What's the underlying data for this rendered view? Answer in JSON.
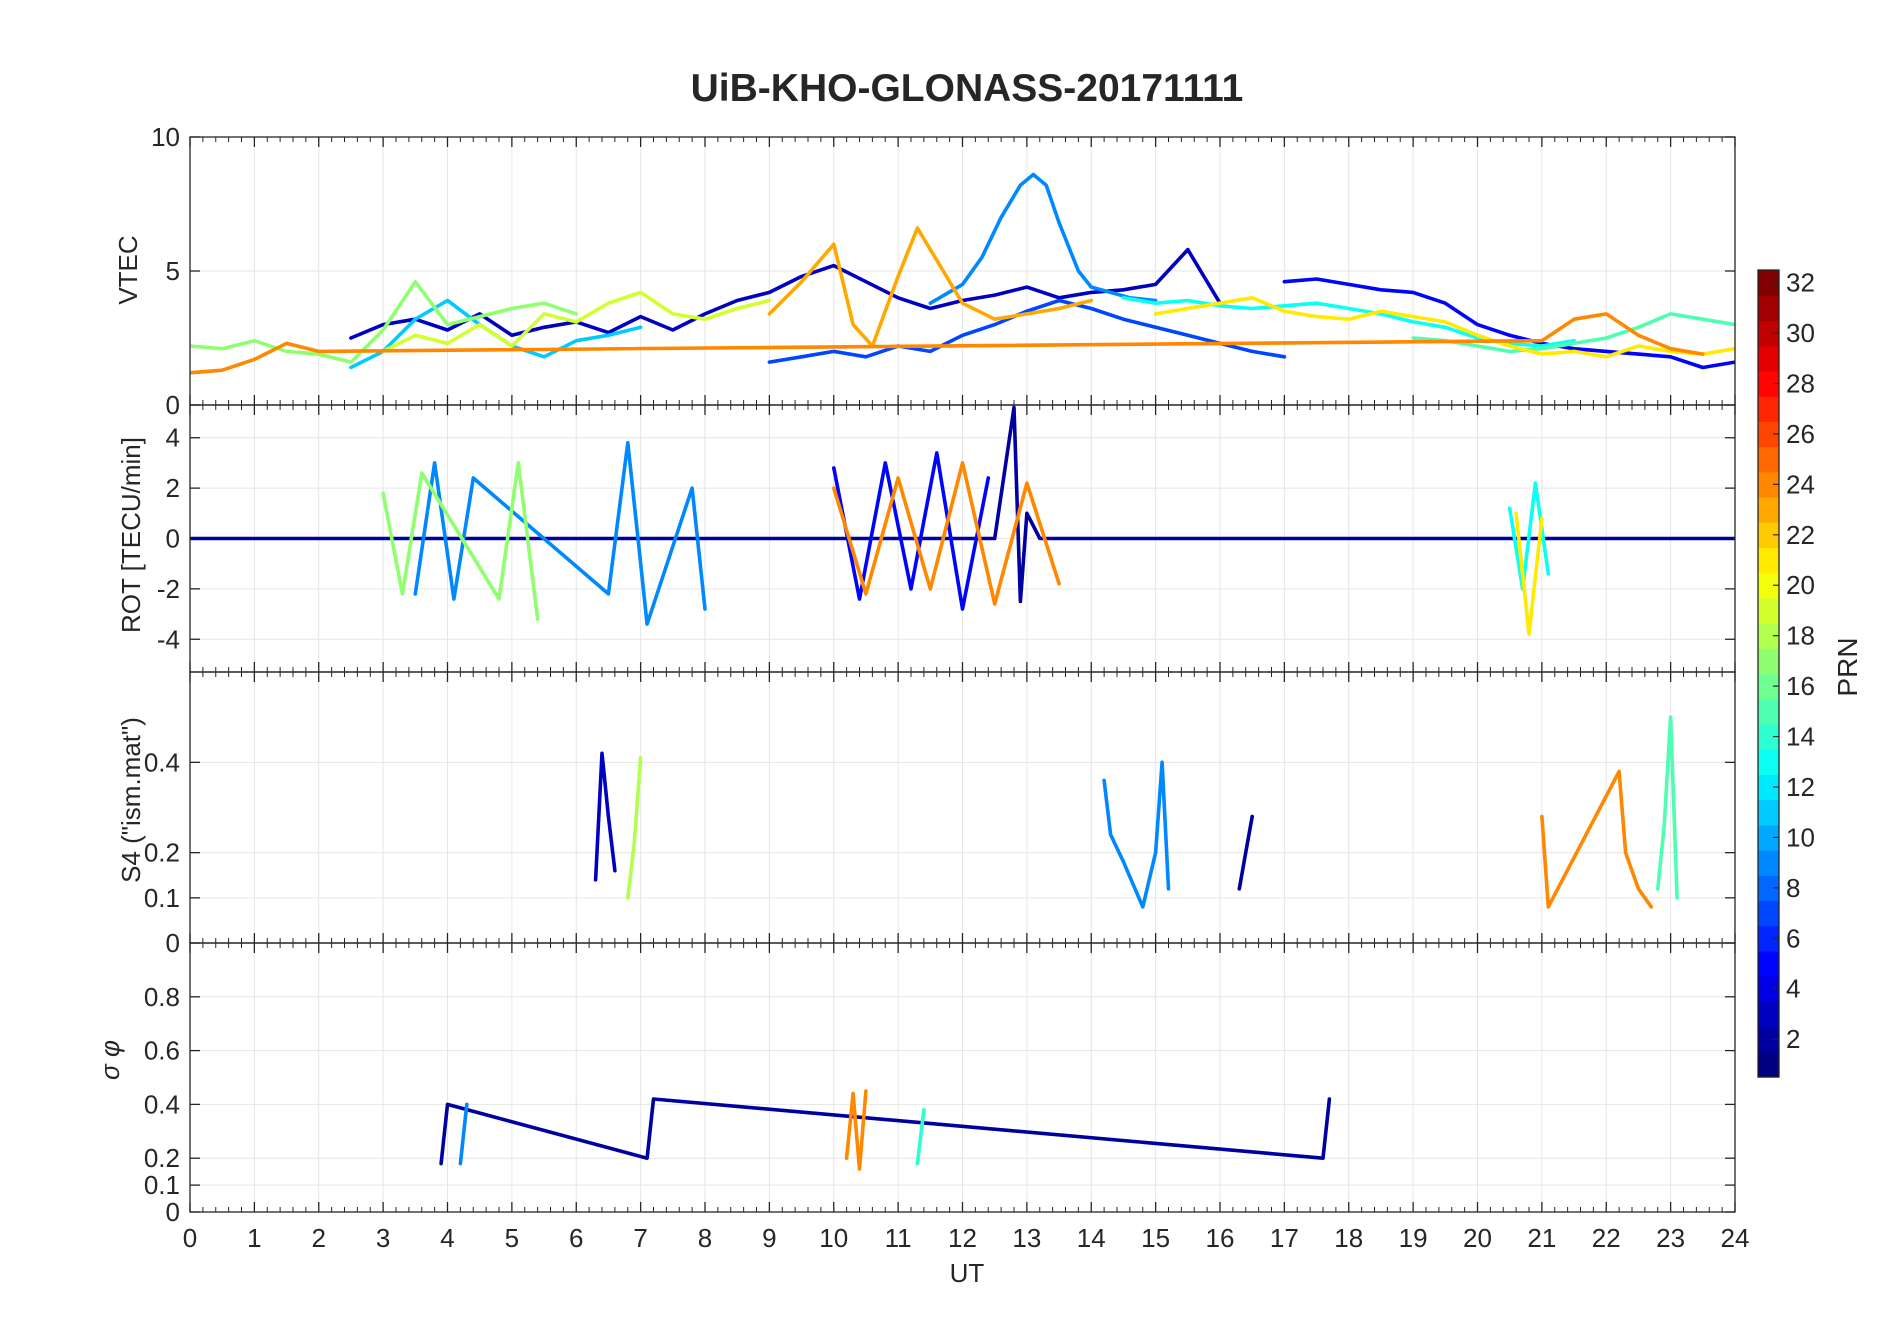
{
  "chart_data": {
    "type": "line",
    "title": "UiB-KHO-GLONASS-20171111",
    "xlabel": "UT",
    "xlim": [
      0,
      24
    ],
    "x_ticks": [
      "0",
      "1",
      "2",
      "3",
      "4",
      "5",
      "6",
      "7",
      "8",
      "9",
      "10",
      "11",
      "12",
      "13",
      "14",
      "15",
      "16",
      "17",
      "18",
      "19",
      "20",
      "21",
      "22",
      "23",
      "24"
    ],
    "grid": true,
    "colorbar": {
      "label": "PRN",
      "range": [
        1,
        32
      ],
      "ticks": [
        "2",
        "4",
        "6",
        "8",
        "10",
        "12",
        "14",
        "16",
        "18",
        "20",
        "22",
        "24",
        "26",
        "28",
        "30",
        "32"
      ],
      "colormap": "jet"
    },
    "panels": [
      {
        "id": "vtec",
        "ylabel": "VTEC",
        "ylim": [
          0,
          10
        ],
        "y_ticks": [
          "0",
          "5",
          "10"
        ],
        "series": [
          {
            "prn": 3,
            "x": [
              2.5,
              3,
              3.5,
              4,
              4.5,
              5,
              5.5,
              6,
              6.5,
              7,
              7.5,
              8,
              8.5,
              9,
              9.5,
              10,
              10.5,
              11,
              11.5,
              12,
              12.5,
              13,
              13.5,
              14,
              14.5,
              15,
              15.5,
              16
            ],
            "y": [
              2.5,
              3.0,
              3.2,
              2.8,
              3.4,
              2.6,
              2.9,
              3.1,
              2.7,
              3.3,
              2.8,
              3.4,
              3.9,
              4.2,
              4.8,
              5.2,
              4.6,
              4.0,
              3.6,
              3.9,
              4.1,
              4.4,
              4.0,
              4.2,
              4.3,
              4.5,
              5.8,
              3.8
            ]
          },
          {
            "prn": 5,
            "x": [
              17,
              17.5,
              18,
              18.5,
              19,
              19.5,
              20,
              20.5,
              21,
              21.5,
              22,
              22.5,
              23,
              23.5,
              24
            ],
            "y": [
              4.6,
              4.7,
              4.5,
              4.3,
              4.2,
              3.8,
              3.0,
              2.6,
              2.3,
              2.1,
              2.0,
              1.9,
              1.8,
              1.4,
              1.6
            ]
          },
          {
            "prn": 7,
            "x": [
              9,
              9.5,
              10,
              10.5,
              11,
              11.5,
              12,
              12.5,
              13,
              13.5,
              14,
              14.5,
              15,
              15.5,
              16,
              16.5,
              17
            ],
            "y": [
              1.6,
              1.8,
              2.0,
              1.8,
              2.2,
              2.0,
              2.6,
              3.0,
              3.5,
              3.9,
              3.6,
              3.2,
              2.9,
              2.6,
              2.3,
              2.0,
              1.8
            ]
          },
          {
            "prn": 9,
            "x": [
              11.5,
              12,
              12.3,
              12.6,
              12.9,
              13.1,
              13.3,
              13.5,
              13.8,
              14,
              14.3,
              14.6,
              15
            ],
            "y": [
              3.8,
              4.5,
              5.5,
              7.0,
              8.2,
              8.6,
              8.2,
              6.8,
              5.0,
              4.4,
              4.2,
              4.0,
              3.9
            ]
          },
          {
            "prn": 11,
            "x": [
              2.5,
              3,
              3.5,
              4,
              4.5,
              5,
              5.5,
              6,
              6.5,
              7
            ],
            "y": [
              1.4,
              2.0,
              3.2,
              3.9,
              3.0,
              2.2,
              1.8,
              2.4,
              2.6,
              2.9
            ]
          },
          {
            "prn": 13,
            "x": [
              14.5,
              15,
              15.5,
              16,
              16.5,
              17,
              17.5,
              18,
              18.5,
              19,
              19.5,
              20,
              20.5,
              21,
              21.5
            ],
            "y": [
              4.0,
              3.8,
              3.9,
              3.7,
              3.6,
              3.7,
              3.8,
              3.6,
              3.4,
              3.1,
              2.9,
              2.5,
              2.3,
              2.2,
              2.4
            ]
          },
          {
            "prn": 15,
            "x": [
              19,
              19.5,
              20,
              20.5,
              21,
              21.5,
              22,
              22.5,
              23,
              23.5,
              24
            ],
            "y": [
              2.5,
              2.4,
              2.2,
              2.0,
              2.1,
              2.3,
              2.5,
              2.9,
              3.4,
              3.2,
              3.0
            ]
          },
          {
            "prn": 17,
            "x": [
              0,
              0.5,
              1,
              1.5,
              2,
              2.5,
              3,
              3.5,
              4,
              4.5,
              5,
              5.5,
              6
            ],
            "y": [
              2.2,
              2.1,
              2.4,
              2.0,
              1.9,
              1.6,
              2.8,
              4.6,
              3.0,
              3.3,
              3.6,
              3.8,
              3.4
            ]
          },
          {
            "prn": 19,
            "x": [
              3,
              3.5,
              4,
              4.5,
              5,
              5.5,
              6,
              6.5,
              7,
              7.5,
              8,
              8.5,
              9
            ],
            "y": [
              2.0,
              2.6,
              2.3,
              3.0,
              2.2,
              3.4,
              3.1,
              3.8,
              4.2,
              3.4,
              3.2,
              3.6,
              3.9
            ]
          },
          {
            "prn": 21,
            "x": [
              15,
              15.5,
              16,
              16.5,
              17,
              17.5,
              18,
              18.5,
              19,
              19.5,
              20,
              20.5,
              21,
              21.5,
              22,
              22.5,
              23,
              23.5,
              24
            ],
            "y": [
              3.4,
              3.6,
              3.8,
              4.0,
              3.5,
              3.3,
              3.2,
              3.5,
              3.3,
              3.1,
              2.6,
              2.2,
              1.9,
              2.0,
              1.8,
              2.2,
              2.0,
              1.9,
              2.1
            ]
          },
          {
            "prn": 23,
            "x": [
              9,
              9.5,
              10,
              10.3,
              10.6,
              11,
              11.3,
              11.6,
              12,
              12.5,
              13,
              13.5,
              14
            ],
            "y": [
              3.4,
              4.6,
              6.0,
              3.0,
              2.2,
              4.8,
              6.6,
              5.4,
              3.8,
              3.2,
              3.4,
              3.6,
              3.9
            ]
          },
          {
            "prn": 24,
            "x": [
              0,
              0.5,
              1,
              1.5,
              2,
              21,
              21.5,
              22,
              22.5,
              23,
              23.5
            ],
            "y": [
              1.2,
              1.3,
              1.7,
              2.3,
              2.0,
              2.4,
              3.2,
              3.4,
              2.6,
              2.1,
              1.9
            ]
          }
        ]
      },
      {
        "id": "rot",
        "ylabel": "ROT [TECU/min]",
        "ylim": [
          -5.3,
          5.3
        ],
        "y_ticks": [
          "-4",
          "-2",
          "0",
          "2",
          "4"
        ],
        "series": [
          {
            "prn": 2,
            "x": [
              0,
              12.5,
              12.8,
              12.9,
              13.0,
              13.2,
              24
            ],
            "y": [
              0,
              0,
              5.2,
              -2.5,
              1.0,
              0,
              0
            ]
          },
          {
            "prn": 5,
            "x": [
              10,
              10.4,
              10.8,
              11.2,
              11.6,
              12,
              12.4
            ],
            "y": [
              2.8,
              -2.4,
              3.0,
              -2.0,
              3.4,
              -2.8,
              2.4
            ]
          },
          {
            "prn": 9,
            "x": [
              3.5,
              3.8,
              4.1,
              4.4,
              6.5,
              6.8,
              7.1,
              7.8,
              8.0
            ],
            "y": [
              -2.2,
              3.0,
              -2.4,
              2.4,
              -2.2,
              3.8,
              -3.4,
              2.0,
              -2.8
            ]
          },
          {
            "prn": 13,
            "x": [
              20.5,
              20.7,
              20.9,
              21.1
            ],
            "y": [
              1.2,
              -2.0,
              2.2,
              -1.4
            ]
          },
          {
            "prn": 17,
            "x": [
              3,
              3.3,
              3.6,
              4.8,
              5.1,
              5.4
            ],
            "y": [
              1.8,
              -2.2,
              2.6,
              -2.4,
              3.0,
              -3.2
            ]
          },
          {
            "prn": 21,
            "x": [
              20.6,
              20.8,
              21.0
            ],
            "y": [
              1.0,
              -3.8,
              0.8
            ]
          },
          {
            "prn": 24,
            "x": [
              10,
              10.5,
              11,
              11.5,
              12,
              12.5,
              13,
              13.5
            ],
            "y": [
              2.0,
              -2.2,
              2.4,
              -2.0,
              3.0,
              -2.6,
              2.2,
              -1.8
            ]
          }
        ]
      },
      {
        "id": "s4",
        "ylabel": "S4 (\"ism.mat\")",
        "ylim": [
          0,
          0.6
        ],
        "y_ticks": [
          "0",
          "0.1",
          "0.2",
          "0.4"
        ],
        "series": [
          {
            "prn": 3,
            "x": [
              6.3,
              6.4,
              6.5,
              6.6
            ],
            "y": [
              0.14,
              0.42,
              0.28,
              0.16
            ]
          },
          {
            "prn": 2,
            "x": [
              16.3,
              16.4,
              16.5
            ],
            "y": [
              0.12,
              0.2,
              0.28
            ]
          },
          {
            "prn": 9,
            "x": [
              14.2,
              14.3,
              14.5,
              14.8,
              15.0,
              15.1,
              15.2
            ],
            "y": [
              0.36,
              0.24,
              0.18,
              0.08,
              0.2,
              0.4,
              0.12
            ]
          },
          {
            "prn": 18,
            "x": [
              6.8,
              6.9,
              7.0
            ],
            "y": [
              0.1,
              0.22,
              0.41
            ]
          },
          {
            "prn": 15,
            "x": [
              22.8,
              22.9,
              23.0,
              23.1
            ],
            "y": [
              0.12,
              0.26,
              0.5,
              0.1
            ]
          },
          {
            "prn": 24,
            "x": [
              21.0,
              21.1,
              22.2,
              22.3,
              22.5,
              22.7
            ],
            "y": [
              0.28,
              0.08,
              0.38,
              0.2,
              0.12,
              0.08
            ]
          }
        ]
      },
      {
        "id": "sigma_phi",
        "ylabel": "σ φ",
        "ylim": [
          0,
          1
        ],
        "y_ticks": [
          "0",
          "0.1",
          "0.2",
          "0.4",
          "0.6",
          "0.8"
        ],
        "series": [
          {
            "prn": 2,
            "x": [
              3.9,
              4.0,
              7.1,
              7.2,
              17.6,
              17.7
            ],
            "y": [
              0.18,
              0.4,
              0.2,
              0.42,
              0.2,
              0.42
            ]
          },
          {
            "prn": 9,
            "x": [
              4.2,
              4.3
            ],
            "y": [
              0.18,
              0.4
            ]
          },
          {
            "prn": 24,
            "x": [
              10.2,
              10.3,
              10.4,
              10.5
            ],
            "y": [
              0.2,
              0.44,
              0.16,
              0.45
            ]
          },
          {
            "prn": 14,
            "x": [
              11.3,
              11.4
            ],
            "y": [
              0.18,
              0.38
            ]
          }
        ]
      }
    ]
  },
  "colors": {
    "axis": "#262626",
    "grid": "#e6e6e6"
  }
}
